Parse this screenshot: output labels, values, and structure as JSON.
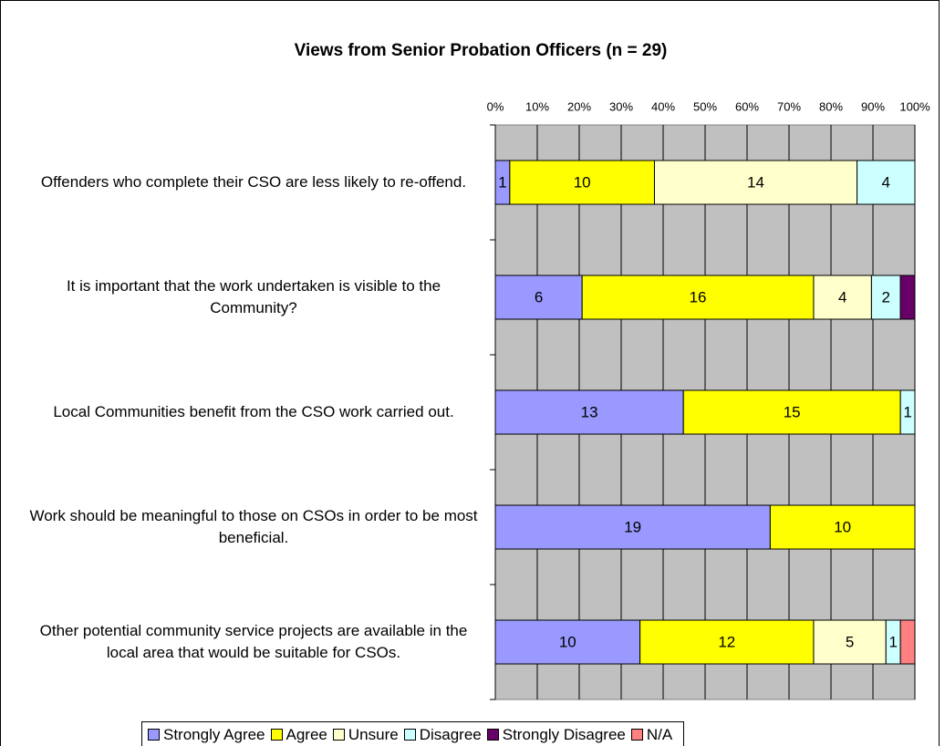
{
  "chart_data": {
    "type": "bar",
    "orientation": "horizontal",
    "stacking": "percent",
    "title": "Views from Senior Probation Officers (n = 29)",
    "categories": [
      "Offenders who complete their CSO are less likely to re-offend.",
      "It is important that the work undertaken is visible to the Community?",
      "Local Communities benefit from the CSO work carried out.",
      "Work should be meaningful to those on CSOs in order to be most beneficial.",
      "Other potential community service projects are available in the local area that would be suitable for CSOs."
    ],
    "series": [
      {
        "name": "Strongly Agree",
        "color": "#9999ff",
        "values": [
          1,
          6,
          13,
          19,
          10
        ]
      },
      {
        "name": "Agree",
        "color": "#ffff00",
        "values": [
          10,
          16,
          15,
          10,
          12
        ]
      },
      {
        "name": "Unsure",
        "color": "#ffffcc",
        "values": [
          14,
          4,
          0,
          0,
          5
        ]
      },
      {
        "name": "Disagree",
        "color": "#ccffff",
        "values": [
          4,
          2,
          1,
          0,
          1
        ]
      },
      {
        "name": "Strongly Disagree",
        "color": "#660066",
        "values": [
          0,
          1,
          0,
          0,
          0
        ],
        "value_labels": [
          null,
          null,
          null,
          null,
          null
        ]
      },
      {
        "name": "N/A",
        "color": "#ff8080",
        "values": [
          0,
          0,
          0,
          0,
          1
        ],
        "value_labels": [
          null,
          null,
          null,
          null,
          null
        ]
      }
    ],
    "xlim": [
      0,
      100
    ],
    "xticks": [
      {
        "value": 0,
        "label": "0%"
      },
      {
        "value": 10,
        "label": "10%"
      },
      {
        "value": 20,
        "label": "20%"
      },
      {
        "value": 30,
        "label": "30%"
      },
      {
        "value": 40,
        "label": "40%"
      },
      {
        "value": 50,
        "label": "50%"
      },
      {
        "value": 60,
        "label": "60%"
      },
      {
        "value": 70,
        "label": "70%"
      },
      {
        "value": 80,
        "label": "80%"
      },
      {
        "value": 90,
        "label": "90%"
      },
      {
        "value": 100,
        "label": "100%"
      }
    ],
    "grid": true,
    "legend": "bottom"
  }
}
